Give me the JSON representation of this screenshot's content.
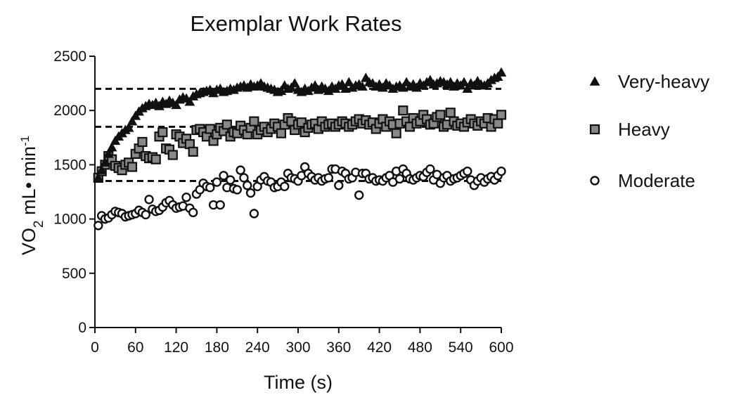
{
  "chart_data": {
    "type": "scatter",
    "title": "Exemplar Work Rates",
    "xlabel": "Time (s)",
    "ylabel": {
      "main": "VO",
      "sub": "2",
      "unit": " mL• min",
      "sup": "-1"
    },
    "xlim": [
      0,
      600
    ],
    "ylim": [
      0,
      2500
    ],
    "xticks": [
      0,
      60,
      120,
      180,
      240,
      300,
      360,
      420,
      480,
      540,
      600
    ],
    "yticks": [
      0,
      500,
      1000,
      1500,
      2000,
      2500
    ],
    "legend_position": "right",
    "reference_lines": [
      {
        "series": "Very-heavy",
        "y": 2200,
        "x_start": 0,
        "x_end": 600
      },
      {
        "series": "Heavy",
        "y": 1850,
        "x_start": 0,
        "x_end": 600
      },
      {
        "series": "Moderate",
        "y": 1350,
        "x_start": 0,
        "x_end": 600
      }
    ],
    "series": [
      {
        "name": "Very-heavy",
        "marker": "triangle",
        "color": "#111111",
        "x": [
          5,
          10,
          15,
          20,
          25,
          30,
          35,
          40,
          45,
          50,
          55,
          60,
          65,
          70,
          75,
          80,
          85,
          90,
          95,
          100,
          105,
          110,
          115,
          120,
          125,
          130,
          135,
          140,
          145,
          150,
          155,
          160,
          165,
          170,
          175,
          180,
          185,
          190,
          195,
          200,
          205,
          210,
          215,
          220,
          225,
          230,
          235,
          240,
          245,
          250,
          255,
          260,
          265,
          270,
          275,
          280,
          285,
          290,
          295,
          300,
          305,
          310,
          315,
          320,
          325,
          330,
          335,
          340,
          345,
          350,
          355,
          360,
          365,
          370,
          375,
          380,
          385,
          390,
          395,
          400,
          405,
          410,
          415,
          420,
          425,
          430,
          435,
          440,
          445,
          450,
          455,
          460,
          465,
          470,
          475,
          480,
          485,
          490,
          495,
          500,
          505,
          510,
          515,
          520,
          525,
          530,
          535,
          540,
          545,
          550,
          555,
          560,
          565,
          570,
          575,
          580,
          585,
          590,
          595,
          600
        ],
        "y": [
          1380,
          1450,
          1520,
          1600,
          1660,
          1720,
          1760,
          1790,
          1820,
          1840,
          1900,
          1950,
          1990,
          2020,
          2040,
          2060,
          2050,
          2070,
          2040,
          2080,
          2060,
          2090,
          2070,
          2050,
          2100,
          2120,
          2110,
          2080,
          2130,
          2150,
          2160,
          2170,
          2180,
          2190,
          2160,
          2190,
          2200,
          2170,
          2180,
          2200,
          2190,
          2210,
          2220,
          2230,
          2210,
          2240,
          2220,
          2230,
          2250,
          2220,
          2210,
          2200,
          2190,
          2170,
          2180,
          2230,
          2200,
          2210,
          2250,
          2190,
          2170,
          2200,
          2180,
          2210,
          2230,
          2190,
          2220,
          2200,
          2180,
          2220,
          2200,
          2230,
          2240,
          2200,
          2260,
          2210,
          2230,
          2240,
          2220,
          2300,
          2260,
          2250,
          2220,
          2240,
          2210,
          2250,
          2230,
          2200,
          2220,
          2230,
          2210,
          2260,
          2220,
          2240,
          2210,
          2250,
          2230,
          2260,
          2280,
          2240,
          2250,
          2270,
          2260,
          2240,
          2260,
          2220,
          2250,
          2230,
          2260,
          2200,
          2250,
          2230,
          2270,
          2240,
          2230,
          2250,
          2280,
          2300,
          2310,
          2350
        ]
      },
      {
        "name": "Heavy",
        "marker": "square",
        "color": "#888888",
        "x": [
          5,
          10,
          15,
          20,
          25,
          30,
          35,
          40,
          45,
          50,
          55,
          60,
          65,
          70,
          75,
          80,
          85,
          90,
          95,
          100,
          105,
          110,
          115,
          120,
          125,
          130,
          135,
          140,
          145,
          150,
          155,
          160,
          165,
          170,
          175,
          180,
          185,
          190,
          195,
          200,
          205,
          210,
          215,
          220,
          225,
          230,
          235,
          240,
          245,
          250,
          255,
          260,
          265,
          270,
          275,
          280,
          285,
          290,
          295,
          300,
          305,
          310,
          315,
          320,
          325,
          330,
          335,
          340,
          345,
          350,
          355,
          360,
          365,
          370,
          375,
          380,
          385,
          390,
          395,
          400,
          405,
          410,
          415,
          420,
          425,
          430,
          435,
          440,
          445,
          450,
          455,
          460,
          465,
          470,
          475,
          480,
          485,
          490,
          495,
          500,
          505,
          510,
          515,
          520,
          525,
          530,
          535,
          540,
          545,
          550,
          555,
          560,
          565,
          570,
          575,
          580,
          585,
          590,
          595,
          600
        ],
        "y": [
          1380,
          1440,
          1500,
          1580,
          1550,
          1490,
          1470,
          1450,
          1500,
          1520,
          1480,
          1600,
          1650,
          1710,
          1580,
          1560,
          1570,
          1550,
          1760,
          1800,
          1650,
          1640,
          1590,
          1780,
          1760,
          1700,
          1740,
          1690,
          1620,
          1820,
          1830,
          1800,
          1760,
          1830,
          1720,
          1780,
          1840,
          1810,
          1870,
          1760,
          1800,
          1790,
          1860,
          1820,
          1780,
          1840,
          1900,
          1780,
          1820,
          1850,
          1800,
          1830,
          1880,
          1850,
          1790,
          1870,
          1930,
          1900,
          1820,
          1870,
          1890,
          1800,
          1840,
          1870,
          1880,
          1830,
          1900,
          1850,
          1870,
          1880,
          1850,
          1870,
          1900,
          1880,
          1850,
          1870,
          1900,
          1920,
          1880,
          1910,
          1870,
          1890,
          1830,
          1880,
          1920,
          1850,
          1900,
          1870,
          1790,
          1880,
          2000,
          1900,
          1850,
          1930,
          1880,
          1900,
          1960,
          1920,
          1870,
          1880,
          1940,
          1960,
          1850,
          1870,
          1980,
          1900,
          1860,
          1880,
          1850,
          1890,
          1920,
          1880,
          1860,
          1900,
          1880,
          1930,
          1850,
          1920,
          1880,
          1960
        ]
      },
      {
        "name": "Moderate",
        "marker": "circle",
        "color": "#ffffff",
        "x": [
          5,
          10,
          15,
          20,
          25,
          30,
          35,
          40,
          45,
          50,
          55,
          60,
          65,
          70,
          75,
          80,
          85,
          90,
          95,
          100,
          105,
          110,
          115,
          120,
          125,
          130,
          135,
          140,
          145,
          150,
          155,
          160,
          165,
          170,
          175,
          180,
          185,
          190,
          195,
          200,
          205,
          210,
          215,
          220,
          225,
          230,
          235,
          240,
          245,
          250,
          255,
          260,
          265,
          270,
          275,
          280,
          285,
          290,
          295,
          300,
          305,
          310,
          315,
          320,
          325,
          330,
          335,
          340,
          345,
          350,
          355,
          360,
          365,
          370,
          375,
          380,
          385,
          390,
          395,
          400,
          405,
          410,
          415,
          420,
          425,
          430,
          435,
          440,
          445,
          450,
          455,
          460,
          465,
          470,
          475,
          480,
          485,
          490,
          495,
          500,
          505,
          510,
          515,
          520,
          525,
          530,
          535,
          540,
          545,
          550,
          555,
          560,
          565,
          570,
          575,
          580,
          585,
          590,
          595,
          600
        ],
        "y": [
          940,
          1030,
          1000,
          1010,
          1040,
          1070,
          1060,
          1050,
          1020,
          1030,
          1040,
          1050,
          1080,
          1060,
          1040,
          1180,
          1090,
          1070,
          1080,
          1110,
          1150,
          1170,
          1130,
          1100,
          1110,
          1120,
          1200,
          1100,
          1060,
          1230,
          1270,
          1330,
          1300,
          1290,
          1130,
          1340,
          1130,
          1400,
          1290,
          1360,
          1280,
          1270,
          1450,
          1380,
          1310,
          1240,
          1050,
          1300,
          1360,
          1390,
          1350,
          1340,
          1290,
          1300,
          1340,
          1300,
          1420,
          1380,
          1370,
          1350,
          1400,
          1480,
          1420,
          1390,
          1360,
          1380,
          1350,
          1370,
          1380,
          1460,
          1460,
          1310,
          1440,
          1420,
          1370,
          1380,
          1430,
          1220,
          1420,
          1420,
          1370,
          1380,
          1350,
          1360,
          1350,
          1380,
          1400,
          1340,
          1440,
          1370,
          1460,
          1420,
          1370,
          1360,
          1380,
          1400,
          1390,
          1430,
          1460,
          1360,
          1410,
          1330,
          1380,
          1400,
          1350,
          1370,
          1380,
          1400,
          1420,
          1440,
          1360,
          1310,
          1350,
          1380,
          1340,
          1370,
          1390,
          1360,
          1400,
          1440
        ]
      }
    ]
  }
}
